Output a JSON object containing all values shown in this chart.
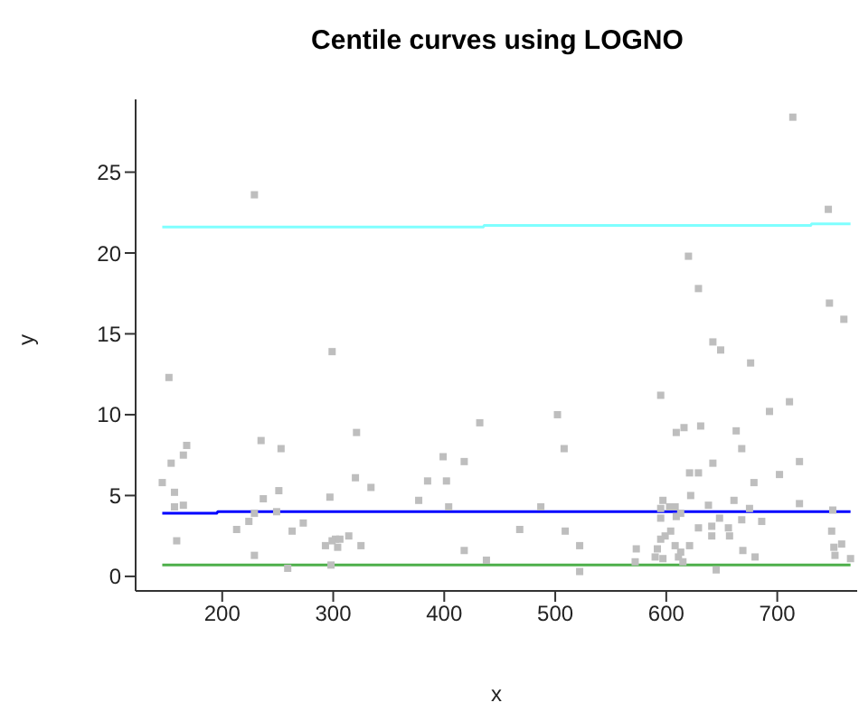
{
  "chart_data": {
    "type": "scatter",
    "title": "Centile curves using LOGNO",
    "xlabel": "x",
    "ylabel": "y",
    "xlim": [
      122,
      772
    ],
    "ylim": [
      -0.9,
      29.5
    ],
    "xticks": [
      200,
      300,
      400,
      500,
      600,
      700
    ],
    "yticks": [
      0,
      5,
      10,
      15,
      20,
      25
    ],
    "grid": false,
    "marker": "square",
    "series": [
      {
        "color": "#bebebe",
        "x": [
          229,
          152,
          299,
          146,
          154,
          165,
          168,
          157,
          157,
          165,
          159,
          235,
          253,
          251,
          237,
          229,
          224,
          213,
          249,
          263,
          273,
          229,
          259,
          297,
          293,
          299,
          302,
          306,
          304,
          314,
          298,
          320,
          321,
          334,
          325,
          377,
          385,
          399,
          402,
          404,
          418,
          432,
          418,
          438,
          714,
          746,
          747,
          760,
          620,
          629,
          642,
          649,
          676,
          595,
          711,
          693,
          502,
          508,
          609,
          616,
          631,
          663,
          668,
          642,
          621,
          629,
          720,
          702,
          679,
          622,
          597,
          661,
          487,
          595,
          603,
          608,
          638,
          675,
          720,
          750,
          613,
          609,
          595,
          648,
          668,
          686,
          468,
          509,
          604,
          599,
          595,
          629,
          641,
          656,
          657,
          641,
          749,
          522,
          573,
          592,
          608,
          621,
          613,
          669,
          758,
          751,
          572,
          590,
          597,
          611,
          615,
          680,
          752,
          766,
          522,
          645
        ],
        "values": [
          23.6,
          12.3,
          13.9,
          5.8,
          7.0,
          7.5,
          8.1,
          5.2,
          4.3,
          4.4,
          2.2,
          8.4,
          7.9,
          5.3,
          4.8,
          3.9,
          3.4,
          2.9,
          4.0,
          2.8,
          3.3,
          1.3,
          0.5,
          4.9,
          1.9,
          2.2,
          2.3,
          2.3,
          1.8,
          2.5,
          0.7,
          6.1,
          8.9,
          5.5,
          1.9,
          4.7,
          5.9,
          7.4,
          5.9,
          4.3,
          7.1,
          9.5,
          1.6,
          1.0,
          28.4,
          22.7,
          16.9,
          15.9,
          19.8,
          17.8,
          14.5,
          14.0,
          13.2,
          11.2,
          10.8,
          10.2,
          10.0,
          7.9,
          8.9,
          9.2,
          9.3,
          9.0,
          7.9,
          7.0,
          6.4,
          6.4,
          7.1,
          6.3,
          5.8,
          5.0,
          4.7,
          4.7,
          4.3,
          4.2,
          4.3,
          4.3,
          4.4,
          4.2,
          4.5,
          4.1,
          3.9,
          3.7,
          3.6,
          3.6,
          3.5,
          3.4,
          2.9,
          2.8,
          2.8,
          2.5,
          2.3,
          3.0,
          3.1,
          3.0,
          2.5,
          2.5,
          2.8,
          1.9,
          1.7,
          1.7,
          1.9,
          1.9,
          1.5,
          1.6,
          2.0,
          1.8,
          0.9,
          1.2,
          1.1,
          1.2,
          0.9,
          1.2,
          1.3,
          1.1,
          0.3,
          0.4
        ]
      },
      {
        "type": "line",
        "color": "#7fffff",
        "marker": "none",
        "x": [
          146,
          435,
          436,
          730,
          731,
          766
        ],
        "values": [
          21.6,
          21.6,
          21.7,
          21.7,
          21.8,
          21.8
        ]
      },
      {
        "type": "line",
        "color": "#0000ff",
        "marker": "none",
        "x": [
          146,
          195,
          196,
          766
        ],
        "values": [
          3.9,
          3.9,
          4.0,
          4.0
        ]
      },
      {
        "type": "line",
        "color": "#4daf4a",
        "marker": "none",
        "x": [
          146,
          766
        ],
        "values": [
          0.7,
          0.7
        ]
      }
    ]
  }
}
